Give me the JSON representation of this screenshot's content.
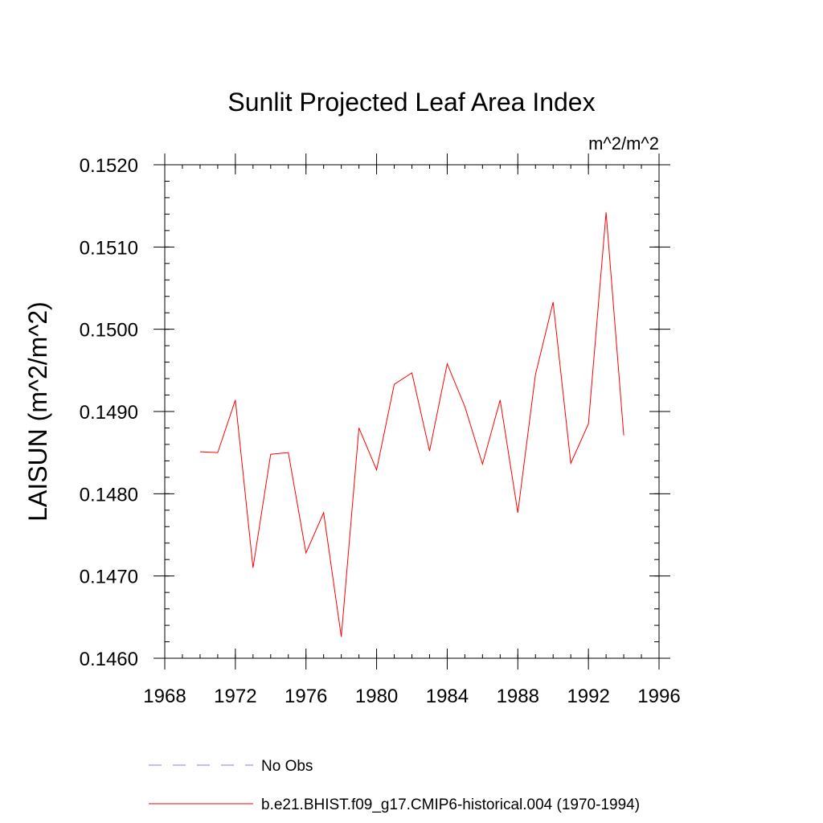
{
  "chart_data": {
    "type": "line",
    "title": "Sunlit Projected Leaf Area Index",
    "units_label": "m^2/m^2",
    "ylabel": "LAISUN  (m^2/m^2)",
    "xlabel": "",
    "xlim": [
      1968,
      1996
    ],
    "ylim": [
      0.146,
      0.152
    ],
    "x_ticks": [
      1968,
      1972,
      1976,
      1980,
      1984,
      1988,
      1992,
      1996
    ],
    "x_tick_labels": [
      "1968",
      "1972",
      "1976",
      "1980",
      "1984",
      "1988",
      "1992",
      "1996"
    ],
    "y_ticks": [
      0.146,
      0.147,
      0.148,
      0.149,
      0.15,
      0.151,
      0.152
    ],
    "y_tick_labels": [
      "0.1460",
      "0.1470",
      "0.1480",
      "0.1490",
      "0.1500",
      "0.1510",
      "0.1520"
    ],
    "grid": false,
    "legend_position": "bottom",
    "legend": [
      {
        "label": "No Obs",
        "color": "#8a7fd6",
        "dash": true
      },
      {
        "label": "b.e21.BHIST.f09_g17.CMIP6-historical.004 (1970-1994)",
        "color": "#ff0000",
        "dash": false
      }
    ],
    "series": [
      {
        "name": "b.e21.BHIST.f09_g17.CMIP6-historical.004 (1970-1994)",
        "color": "#ff0000",
        "x": [
          1970,
          1971,
          1972,
          1973,
          1974,
          1975,
          1976,
          1977,
          1978,
          1979,
          1980,
          1981,
          1982,
          1983,
          1984,
          1985,
          1986,
          1987,
          1988,
          1989,
          1990,
          1991,
          1992,
          1993,
          1994
        ],
        "values": [
          0.14851,
          0.1485,
          0.14914,
          0.1471,
          0.14848,
          0.1485,
          0.14728,
          0.14777,
          0.14626,
          0.1488,
          0.14829,
          0.14933,
          0.14947,
          0.14852,
          0.14958,
          0.14906,
          0.14836,
          0.14914,
          0.14777,
          0.14945,
          0.15033,
          0.14837,
          0.14885,
          0.15142,
          0.14871
        ]
      }
    ]
  }
}
